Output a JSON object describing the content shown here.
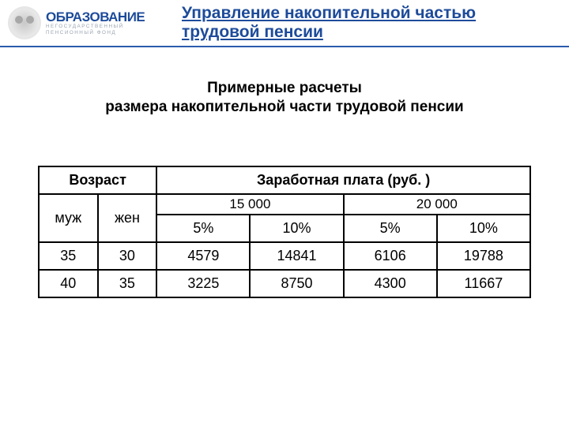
{
  "header": {
    "logo_main": "ОБРАЗОВАНИЕ",
    "logo_sub1": "НЕГОСУДАРСТВЕННЫЙ",
    "logo_sub2": "ПЕНСИОННЫЙ  ФОНД",
    "title_line1": "Управление накопительной частью",
    "title_line2": "трудовой пенсии"
  },
  "subtitle": {
    "line1": "Примерные расчеты",
    "line2": "размера накопительной части трудовой пенсии"
  },
  "table": {
    "age_header": "Возраст",
    "male": "муж",
    "female": "жен",
    "salary_header": "Заработная плата (руб. )",
    "salary_groups": [
      "15 000",
      "20 000"
    ],
    "percent_labels": [
      "5%",
      "10%",
      "5%",
      "10%"
    ],
    "rows": [
      {
        "m": "35",
        "f": "30",
        "v": [
          "4579",
          "14841",
          "6106",
          "19788"
        ]
      },
      {
        "m": "40",
        "f": "35",
        "v": [
          "3225",
          "8750",
          "4300",
          "11667"
        ]
      }
    ]
  },
  "colors": {
    "brand_blue": "#1d4b9a",
    "rule_blue": "#2b5cae",
    "logo_gray": "#9aa4b0",
    "text_black": "#000000",
    "background": "#ffffff"
  }
}
